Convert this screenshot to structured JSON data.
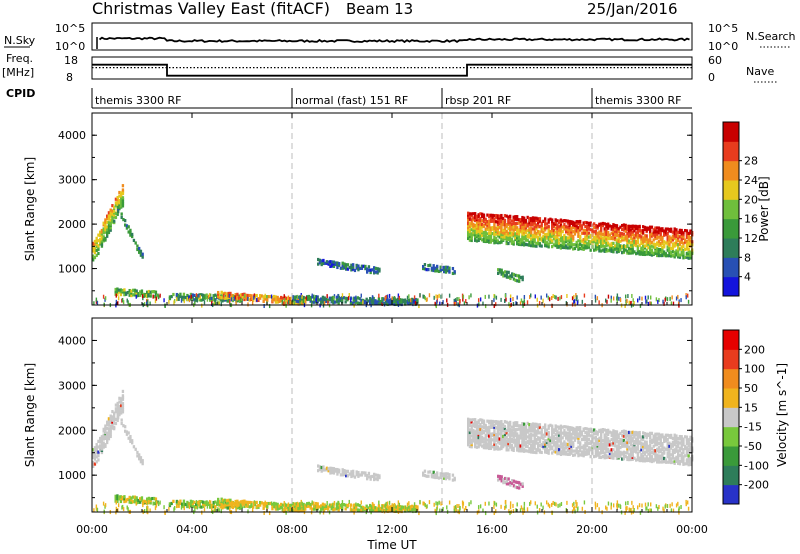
{
  "header": {
    "title": "Christmas Valley East (fitACF)",
    "beam": "Beam 13",
    "date": "25/Jan/2016"
  },
  "chart_data": {
    "type": "heatmap",
    "xlabel": "Time UT",
    "x_ticks": [
      "00:00",
      "04:00",
      "08:00",
      "12:00",
      "16:00",
      "20:00",
      "00:00"
    ],
    "xlim_hours": [
      0,
      24
    ],
    "mode_boundaries_hours": [
      8,
      14,
      20
    ],
    "nsky_panel": {
      "label": "N.Sky",
      "right_label": "N.Search",
      "left_ticks": [
        "10^5",
        "10^0"
      ],
      "right_ticks": [
        "10^5",
        "10^0"
      ],
      "nsky_level_hours": [
        0.3,
        2.5,
        3.0,
        15.0,
        15.2,
        24.0
      ],
      "nsky_level_values": [
        1.0,
        0.85,
        0.7,
        0.7,
        0.85,
        0.85
      ]
    },
    "freq_panel": {
      "label": "Freq.",
      "unit": "[MHz]",
      "right_label": "Nave",
      "left_ticks": [
        "18",
        "8"
      ],
      "right_ticks": [
        "60",
        "0"
      ],
      "freq_mhz_steps": [
        {
          "start": 0,
          "end": 3,
          "value": 14.5
        },
        {
          "start": 3,
          "end": 15,
          "value": 9.5
        },
        {
          "start": 15,
          "end": 24,
          "value": 14.5
        }
      ],
      "nave_level": 31
    },
    "cpid": {
      "label": "CPID",
      "segments": [
        {
          "label": "themis 3300 RF",
          "start": 0,
          "end": 8
        },
        {
          "label": "normal (fast) 151 RF",
          "start": 8,
          "end": 14
        },
        {
          "label": "rbsp 201 RF",
          "start": 14,
          "end": 20
        },
        {
          "label": "themis 3300 RF",
          "start": 20,
          "end": 24
        }
      ]
    },
    "power_panel": {
      "ylabel": "Slant Range [km]",
      "y_ticks": [
        "1000",
        "2000",
        "3000",
        "4000"
      ],
      "ylim_km": [
        180,
        4500
      ],
      "colorbar_label": "Power [dB]",
      "colorbar_ticks": [
        "4",
        "8",
        "12",
        "16",
        "20",
        "24",
        "28"
      ],
      "colorbar_range": [
        0,
        32
      ],
      "colors": [
        "#1414dc",
        "#2850b4",
        "#2e7d5a",
        "#3a9a3a",
        "#6fbf3c",
        "#e6c81e",
        "#f08c1e",
        "#e83c1e",
        "#c80000"
      ]
    },
    "velocity_panel": {
      "ylabel": "Slant Range [km]",
      "y_ticks": [
        "1000",
        "2000",
        "3000",
        "4000"
      ],
      "ylim_km": [
        180,
        4500
      ],
      "colorbar_label": "Velocity [m s^-1]",
      "colorbar_ticks": [
        "200",
        "100",
        "50",
        "15",
        "-15",
        "-50",
        "-100",
        "-200"
      ],
      "colors": [
        "#2832c8",
        "#2e7d5a",
        "#3a9a3a",
        "#78c83c",
        "#c8c8c8",
        "#f0b41e",
        "#f08c1e",
        "#e83c1e",
        "#e60000"
      ]
    },
    "echo_regions": [
      {
        "name": "morning-arc",
        "t0": 0.0,
        "t1": 1.2,
        "r_start": 1400,
        "r_end": 2700,
        "power": 19
      },
      {
        "name": "morning-tail",
        "t0": 1.0,
        "t1": 2.0,
        "r_start": 2400,
        "r_end": 1300,
        "power": 9
      },
      {
        "name": "near-range-1",
        "t0": 0.9,
        "t1": 2.6,
        "r_start": 540,
        "r_end": 470,
        "power": 14
      },
      {
        "name": "near-range-2",
        "t0": 3.0,
        "t1": 6.0,
        "r_start": 430,
        "r_end": 380,
        "power": 11
      },
      {
        "name": "near-range-3",
        "t0": 5.0,
        "t1": 8.5,
        "r_start": 470,
        "r_end": 310,
        "power": 22
      },
      {
        "name": "near-range-4",
        "t0": 8.0,
        "t1": 13.0,
        "r_start": 380,
        "r_end": 300,
        "power": 9
      },
      {
        "name": "mid-patch",
        "t0": 9.0,
        "t1": 11.5,
        "r_start": 1200,
        "r_end": 1000,
        "power": 7
      },
      {
        "name": "patch-14h",
        "t0": 13.2,
        "t1": 14.5,
        "r_start": 1100,
        "r_end": 1000,
        "power": 8
      },
      {
        "name": "patch-16h",
        "t0": 16.2,
        "t1": 17.2,
        "r_start": 1000,
        "r_end": 800,
        "power": 12
      },
      {
        "name": "evening-band",
        "t0": 15.0,
        "t1": 24.0,
        "r_start": 2000,
        "r_end": 1600,
        "power": 26
      }
    ]
  }
}
